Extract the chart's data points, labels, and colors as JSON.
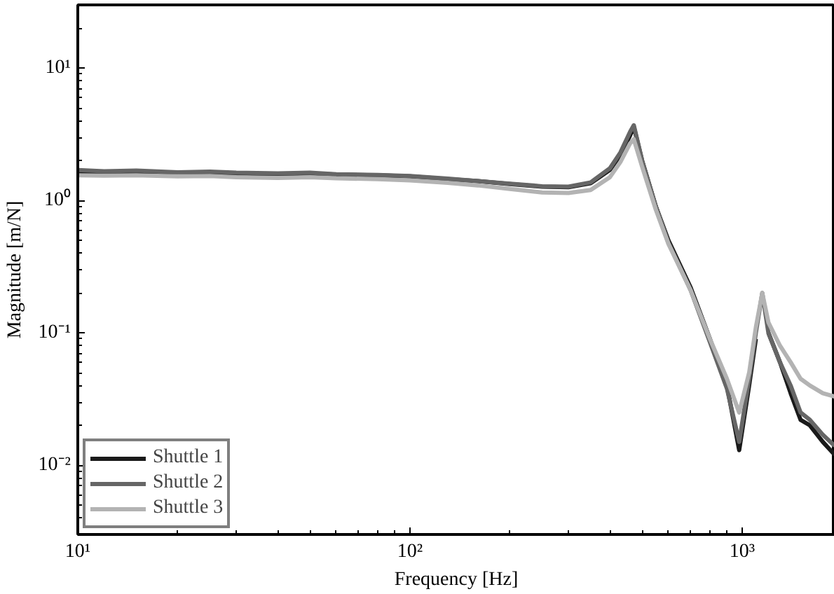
{
  "chart_data": {
    "type": "line",
    "xlabel": "Frequency [Hz]",
    "ylabel": "Magnitude [m/N]",
    "x": [
      10,
      12,
      15,
      20,
      25,
      30,
      40,
      50,
      60,
      80,
      100,
      130,
      160,
      200,
      250,
      300,
      350,
      400,
      430,
      460,
      472,
      500,
      550,
      600,
      700,
      800,
      900,
      980,
      1050,
      1100,
      1150,
      1200,
      1300,
      1400,
      1500,
      1600,
      1750,
      1900
    ],
    "series": [
      {
        "name": "Shuttle 1",
        "color": "#1a1a1a",
        "values": [
          1.65,
          1.62,
          1.64,
          1.6,
          1.62,
          1.6,
          1.58,
          1.6,
          1.57,
          1.55,
          1.52,
          1.45,
          1.4,
          1.33,
          1.27,
          1.26,
          1.35,
          1.7,
          2.2,
          3.1,
          3.6,
          2.0,
          0.9,
          0.5,
          0.22,
          0.09,
          0.04,
          0.013,
          0.04,
          0.09,
          null,
          0.1,
          0.06,
          0.035,
          0.022,
          0.02,
          0.015,
          0.012
        ]
      },
      {
        "name": "Shuttle 2",
        "color": "#666666",
        "values": [
          1.7,
          1.66,
          1.68,
          1.63,
          1.65,
          1.62,
          1.6,
          1.62,
          1.58,
          1.56,
          1.53,
          1.46,
          1.4,
          1.34,
          1.28,
          1.27,
          1.37,
          1.75,
          2.3,
          3.3,
          3.7,
          2.0,
          0.9,
          0.48,
          0.21,
          0.085,
          0.038,
          0.015,
          0.045,
          0.1,
          0.2,
          0.1,
          0.06,
          0.04,
          0.025,
          0.022,
          0.017,
          0.014
        ]
      },
      {
        "name": "Shuttle 3",
        "color": "#b3b3b3",
        "values": [
          1.55,
          1.54,
          1.55,
          1.52,
          1.53,
          1.5,
          1.48,
          1.5,
          1.47,
          1.45,
          1.42,
          1.36,
          1.3,
          1.22,
          1.15,
          1.14,
          1.2,
          1.5,
          1.95,
          2.7,
          2.9,
          1.8,
          0.85,
          0.47,
          0.21,
          0.09,
          0.045,
          0.025,
          0.05,
          0.11,
          0.2,
          0.12,
          0.08,
          0.06,
          0.045,
          0.04,
          0.035,
          0.033
        ]
      }
    ],
    "log": "xy",
    "xlim": [
      10,
      1900
    ],
    "ylim": [
      0.003,
      30
    ],
    "xticks": [
      {
        "value": 10,
        "label": "10¹"
      },
      {
        "value": 100,
        "label": "10²"
      },
      {
        "value": 1000,
        "label": "10³"
      }
    ],
    "yticks": [
      {
        "value": 0.01,
        "label": "10⁻²"
      },
      {
        "value": 0.1,
        "label": "10⁻¹"
      },
      {
        "value": 1,
        "label": "10⁰"
      },
      {
        "value": 10,
        "label": "10¹"
      }
    ],
    "grid": false,
    "legend": "bottom left",
    "line_style": "solid",
    "marker": "none"
  }
}
